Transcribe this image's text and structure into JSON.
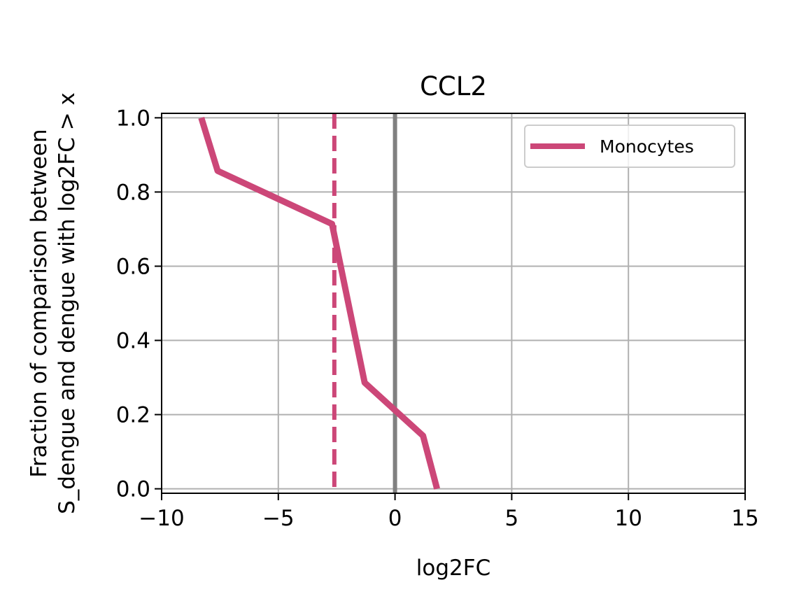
{
  "chart_data": {
    "type": "line",
    "title": "CCL2",
    "xlabel": "log2FC",
    "ylabel_line1": "Fraction of comparison between",
    "ylabel_line2": "S_dengue and dengue with log2FC > x",
    "xlim": [
      -10,
      15
    ],
    "ylim": [
      0,
      1
    ],
    "xticks": [
      -10,
      -5,
      0,
      5,
      10,
      15
    ],
    "xtick_labels": [
      "−10",
      "−5",
      "0",
      "5",
      "10",
      "15"
    ],
    "yticks": [
      0.0,
      0.2,
      0.4,
      0.6,
      0.8,
      1.0
    ],
    "ytick_labels": [
      "0.0",
      "0.2",
      "0.4",
      "0.6",
      "0.8",
      "1.0"
    ],
    "grid": true,
    "legend_position": "upper right",
    "series": [
      {
        "name": "Monocytes",
        "color": "#cc4778",
        "x": [
          -8.3,
          -7.6,
          -2.7,
          -1.3,
          1.2,
          1.8
        ],
        "y": [
          1.0,
          0.857,
          0.714,
          0.286,
          0.143,
          0.0
        ]
      }
    ],
    "vlines": [
      {
        "x": 0,
        "color": "#808080",
        "style": "solid"
      },
      {
        "x": -2.6,
        "color": "#cc4778",
        "style": "dashed"
      }
    ]
  }
}
